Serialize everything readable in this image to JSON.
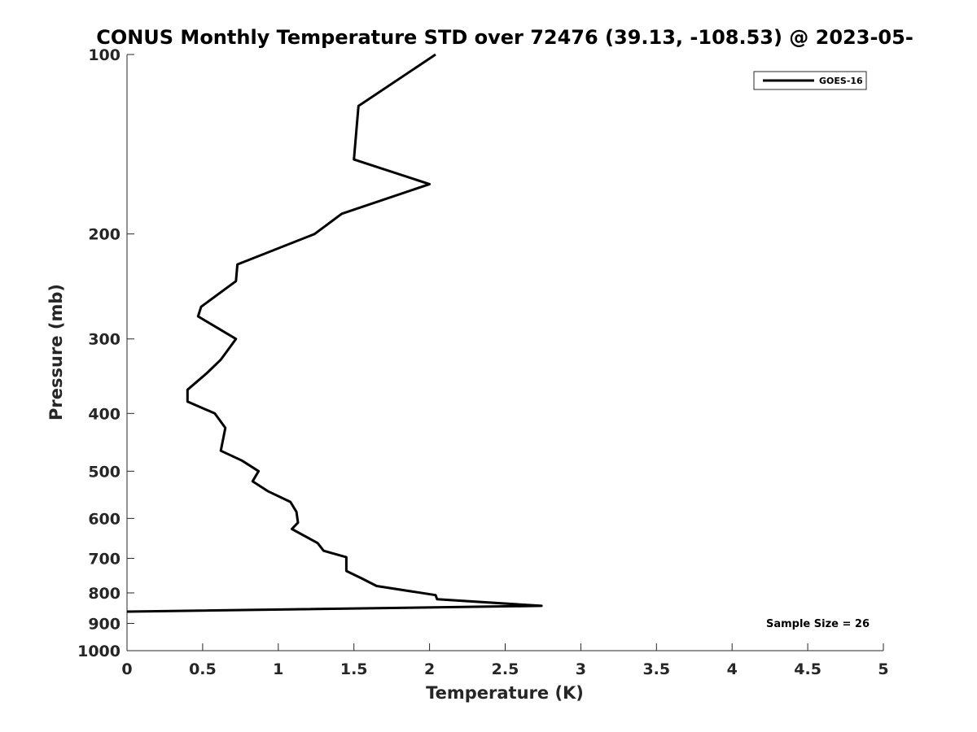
{
  "chart_data": {
    "type": "line",
    "title": "CONUS Monthly Temperature STD over 72476 (39.13, -108.53) @ 2023-05-",
    "xlabel": "Temperature (K)",
    "ylabel": "Pressure (mb)",
    "xlim": [
      0,
      5
    ],
    "ylim": [
      1000,
      100
    ],
    "y_scale": "log",
    "y_reversed": true,
    "x_ticks": [
      0,
      0.5,
      1,
      1.5,
      2,
      2.5,
      3,
      3.5,
      4,
      4.5,
      5
    ],
    "x_tick_labels": [
      "0",
      "0.5",
      "1",
      "1.5",
      "2",
      "2.5",
      "3",
      "3.5",
      "4",
      "4.5",
      "5"
    ],
    "y_ticks": [
      100,
      200,
      300,
      400,
      500,
      600,
      700,
      800,
      900,
      1000
    ],
    "y_tick_labels": [
      "100",
      "200",
      "300",
      "400",
      "500",
      "600",
      "700",
      "800",
      "900",
      "1000"
    ],
    "grid": false,
    "legend_position": "top-right",
    "annotation": "Sample Size = 26",
    "series": [
      {
        "name": "GOES-16",
        "color": "#000000",
        "points": [
          {
            "x": 2.04,
            "p": 100
          },
          {
            "x": 1.53,
            "p": 122
          },
          {
            "x": 1.5,
            "p": 150
          },
          {
            "x": 2.0,
            "p": 165
          },
          {
            "x": 1.42,
            "p": 185
          },
          {
            "x": 1.24,
            "p": 200
          },
          {
            "x": 0.73,
            "p": 225
          },
          {
            "x": 0.72,
            "p": 240
          },
          {
            "x": 0.49,
            "p": 265
          },
          {
            "x": 0.47,
            "p": 275
          },
          {
            "x": 0.72,
            "p": 300
          },
          {
            "x": 0.62,
            "p": 325
          },
          {
            "x": 0.53,
            "p": 342
          },
          {
            "x": 0.4,
            "p": 365
          },
          {
            "x": 0.4,
            "p": 382
          },
          {
            "x": 0.58,
            "p": 400
          },
          {
            "x": 0.65,
            "p": 423
          },
          {
            "x": 0.62,
            "p": 462
          },
          {
            "x": 0.76,
            "p": 480
          },
          {
            "x": 0.87,
            "p": 500
          },
          {
            "x": 0.83,
            "p": 520
          },
          {
            "x": 0.93,
            "p": 540
          },
          {
            "x": 1.08,
            "p": 563
          },
          {
            "x": 1.12,
            "p": 585
          },
          {
            "x": 1.13,
            "p": 610
          },
          {
            "x": 1.09,
            "p": 625
          },
          {
            "x": 1.26,
            "p": 660
          },
          {
            "x": 1.3,
            "p": 680
          },
          {
            "x": 1.45,
            "p": 697
          },
          {
            "x": 1.45,
            "p": 735
          },
          {
            "x": 1.55,
            "p": 756
          },
          {
            "x": 1.65,
            "p": 779
          },
          {
            "x": 2.04,
            "p": 807
          },
          {
            "x": 2.05,
            "p": 820
          },
          {
            "x": 2.74,
            "p": 841
          },
          {
            "x": 0.0,
            "p": 860
          }
        ]
      }
    ]
  }
}
